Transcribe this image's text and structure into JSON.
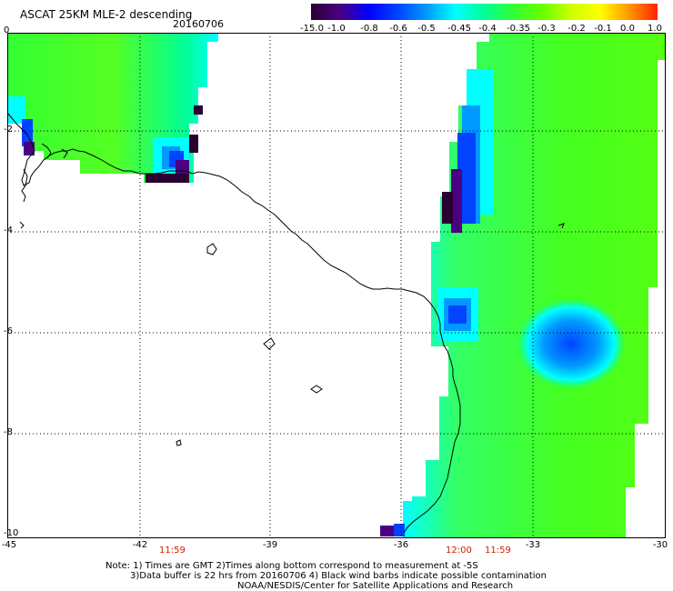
{
  "header": {
    "title": "ASCAT 25KM MLE-2 descending",
    "date": "20160706"
  },
  "colorbar": {
    "labels": [
      "-15.0",
      "-1.0",
      "-0.8",
      "-0.6",
      "-0.5",
      "-0.45",
      "-0.4",
      "-0.35",
      "-0.3",
      "-0.2",
      "-0.1",
      "0.0",
      "1.0"
    ],
    "colors": [
      "#2a0033",
      "#4b0082",
      "#0000ff",
      "#0044ff",
      "#0099ff",
      "#00ffff",
      "#00ff99",
      "#33ff33",
      "#66ff00",
      "#ccff00",
      "#ffff00",
      "#ff9900",
      "#ff2200"
    ]
  },
  "axes": {
    "x_ticks": [
      "-45",
      "-42",
      "-39",
      "-36",
      "-33",
      "-30"
    ],
    "y_ticks": [
      "0",
      "-2",
      "-4",
      "-6",
      "-8",
      "-10"
    ]
  },
  "times": {
    "left": "11:59",
    "mid": "12:00",
    "right": "11:59"
  },
  "footer": {
    "line1": "Note: 1) Times are GMT 2)Times along bottom correspond to measurement at -5S",
    "line2": "3)Data buffer is 22 hrs from 20160706 4) Black wind barbs indicate possible contamination",
    "line3": "NOAA/NESDIS/Center for Satellite Applications and Research"
  }
}
